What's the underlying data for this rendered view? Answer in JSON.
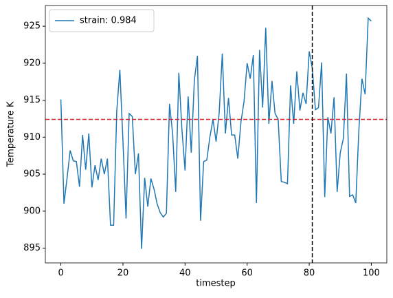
{
  "chart_data": {
    "type": "line",
    "x_label": "timestep",
    "y_label": "Temperature K",
    "x": [
      0,
      1,
      2,
      3,
      4,
      5,
      6,
      7,
      8,
      9,
      10,
      11,
      12,
      13,
      14,
      15,
      16,
      17,
      18,
      19,
      20,
      21,
      22,
      23,
      24,
      25,
      26,
      27,
      28,
      29,
      30,
      31,
      32,
      33,
      34,
      35,
      36,
      37,
      38,
      39,
      40,
      41,
      42,
      43,
      44,
      45,
      46,
      47,
      48,
      49,
      50,
      51,
      52,
      53,
      54,
      55,
      56,
      57,
      58,
      59,
      60,
      61,
      62,
      63,
      64,
      65,
      66,
      67,
      68,
      69,
      70,
      71,
      72,
      73,
      74,
      75,
      76,
      77,
      78,
      79,
      80,
      81,
      82,
      83,
      84,
      85,
      86,
      87,
      88,
      89,
      90,
      91,
      92,
      93,
      94,
      95,
      96,
      97,
      98,
      99,
      100
    ],
    "series": [
      {
        "name": "strain: 0.984",
        "color": "#1f77b4",
        "values": [
          915.1,
          901.0,
          904.5,
          908.2,
          906.8,
          906.7,
          903.3,
          910.3,
          905.6,
          910.5,
          903.2,
          906.2,
          904.2,
          907.1,
          905.0,
          907.1,
          898.1,
          898.1,
          913.5,
          919.1,
          909.5,
          899.0,
          913.2,
          912.8,
          905.0,
          907.8,
          894.9,
          904.5,
          900.6,
          904.4,
          903.0,
          901.0,
          899.8,
          899.2,
          899.7,
          914.5,
          910.5,
          902.6,
          918.7,
          911.0,
          905.5,
          915.5,
          907.9,
          917.7,
          921.0,
          898.7,
          906.7,
          906.9,
          910.0,
          912.4,
          909.4,
          913.3,
          921.3,
          910.5,
          915.3,
          910.3,
          910.3,
          907.1,
          912.0,
          914.8,
          920.0,
          917.9,
          921.1,
          901.1,
          921.8,
          914.0,
          924.8,
          911.8,
          917.6,
          913.2,
          912.4,
          904.0,
          903.9,
          903.7,
          917.0,
          911.8,
          918.9,
          913.6,
          916.0,
          914.5,
          921.6,
          919.3,
          913.7,
          914.0,
          920.1,
          901.9,
          912.7,
          910.5,
          915.4,
          902.6,
          907.9,
          909.8,
          918.6,
          902.0,
          902.2,
          901.1,
          911.0,
          917.9,
          915.8,
          926.1,
          925.7
        ]
      }
    ],
    "hline": {
      "value": 912.4,
      "color": "#d62728"
    },
    "vline": {
      "value": 81,
      "color": "#000000"
    },
    "xlim": [
      -5,
      105
    ],
    "ylim": [
      893.0,
      927.8
    ],
    "xticks": [
      0,
      20,
      40,
      60,
      80,
      100
    ],
    "yticks": [
      895,
      900,
      905,
      910,
      915,
      920,
      925
    ],
    "legend": "upper left"
  }
}
